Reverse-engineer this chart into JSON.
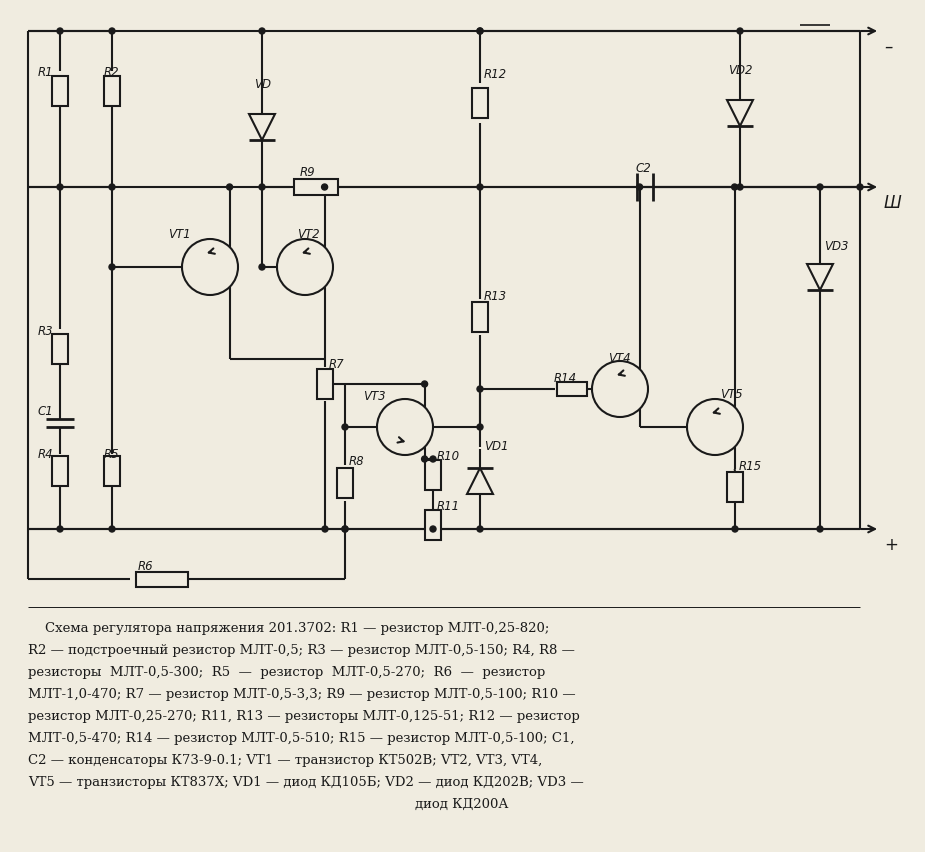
{
  "bg_color": "#f0ece0",
  "line_color": "#1a1a1a",
  "lw": 1.5,
  "caption_lines": [
    "    Схема регулятора напряжения 201.3702: R1 — резистор МЛТ-0,25-820;",
    "R2 — подстроечный резистор МЛТ-0,5; R3 — резистор МЛТ-0,5-150; R4, R8 —",
    "резисторы  МЛТ-0,5-300;  R5  —  резистор  МЛТ-0,5-270;  R6  —  резистор",
    "МЛТ-1,0-470; R7 — резистор МЛТ-0,5-3,3; R9 — резистор МЛТ-0,5-100; R10 —",
    "резистор МЛТ-0,25-270; R11, R13 — резисторы МЛТ-0,125-51; R12 — резистор",
    "МЛТ-0,5-470; R14 — резистор МЛТ-0,5-510; R15 — резистор МЛТ-0,5-100; C1,",
    "C2 — конденсаторы К73-9-0.1; VT1 — транзистор КТ502В; VT2, VT3, VT4,",
    "VT5 — транзисторы КТ837Х; VD1 — диод КД105Б; VD2 — диод КД202В; VD3 —",
    "диод КД200А"
  ]
}
